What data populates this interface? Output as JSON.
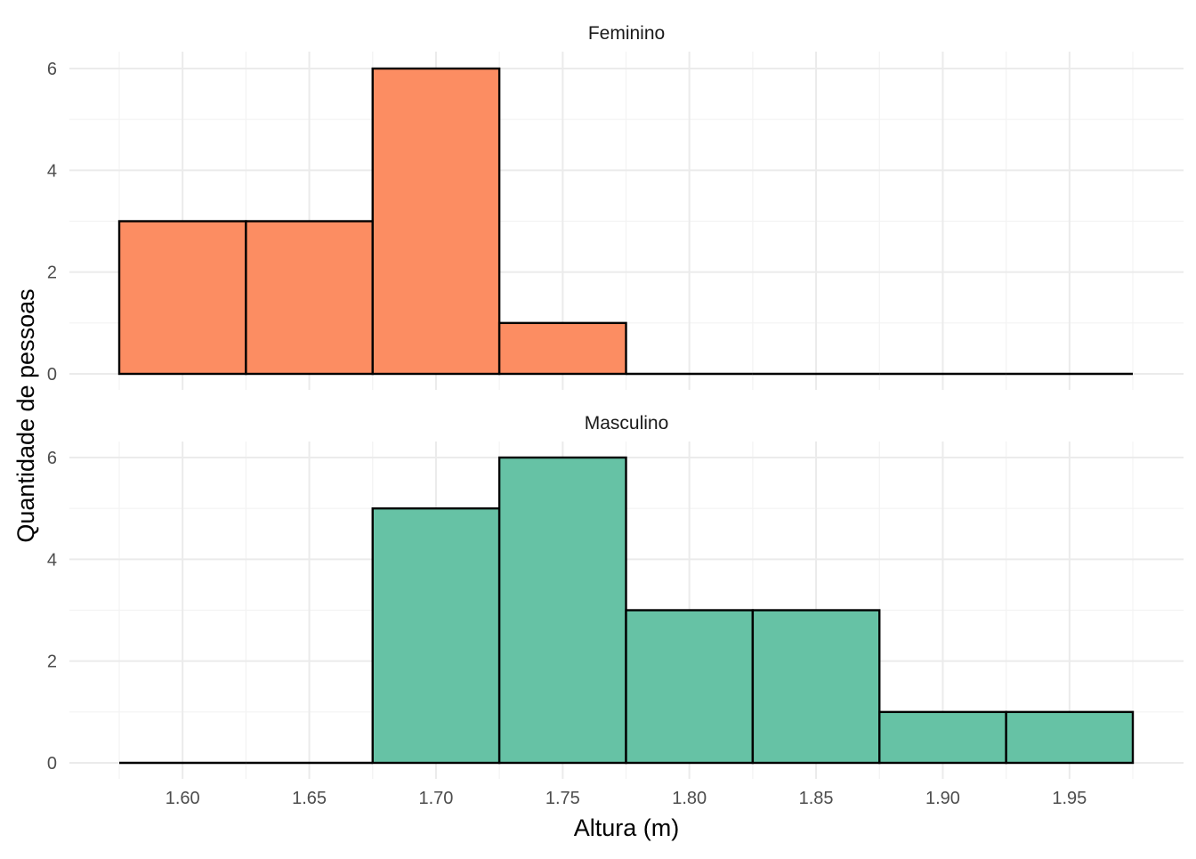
{
  "chart_data": {
    "type": "bar",
    "xlabel": "Altura (m)",
    "ylabel": "Quantidade de pessoas",
    "x_ticks": [
      "1.60",
      "1.65",
      "1.70",
      "1.75",
      "1.80",
      "1.85",
      "1.90",
      "1.95"
    ],
    "x_tick_values": [
      1.6,
      1.65,
      1.7,
      1.75,
      1.8,
      1.85,
      1.9,
      1.95
    ],
    "xlim": [
      1.575,
      1.975
    ],
    "y_ticks": [
      "0",
      "2",
      "4",
      "6"
    ],
    "y_tick_values": [
      0,
      2,
      4,
      6
    ],
    "ylim": [
      0,
      6
    ],
    "bin_width": 0.05,
    "bin_centers": [
      1.6,
      1.65,
      1.7,
      1.75,
      1.8,
      1.85,
      1.9,
      1.95
    ],
    "grid": true,
    "legend": "none",
    "panels": [
      {
        "name": "Feminino",
        "color": "#fc8d62",
        "values": [
          3,
          3,
          6,
          1,
          0,
          0,
          0,
          0
        ]
      },
      {
        "name": "Masculino",
        "color": "#66c2a5",
        "values": [
          0,
          0,
          5,
          6,
          3,
          3,
          1,
          1
        ]
      }
    ]
  }
}
